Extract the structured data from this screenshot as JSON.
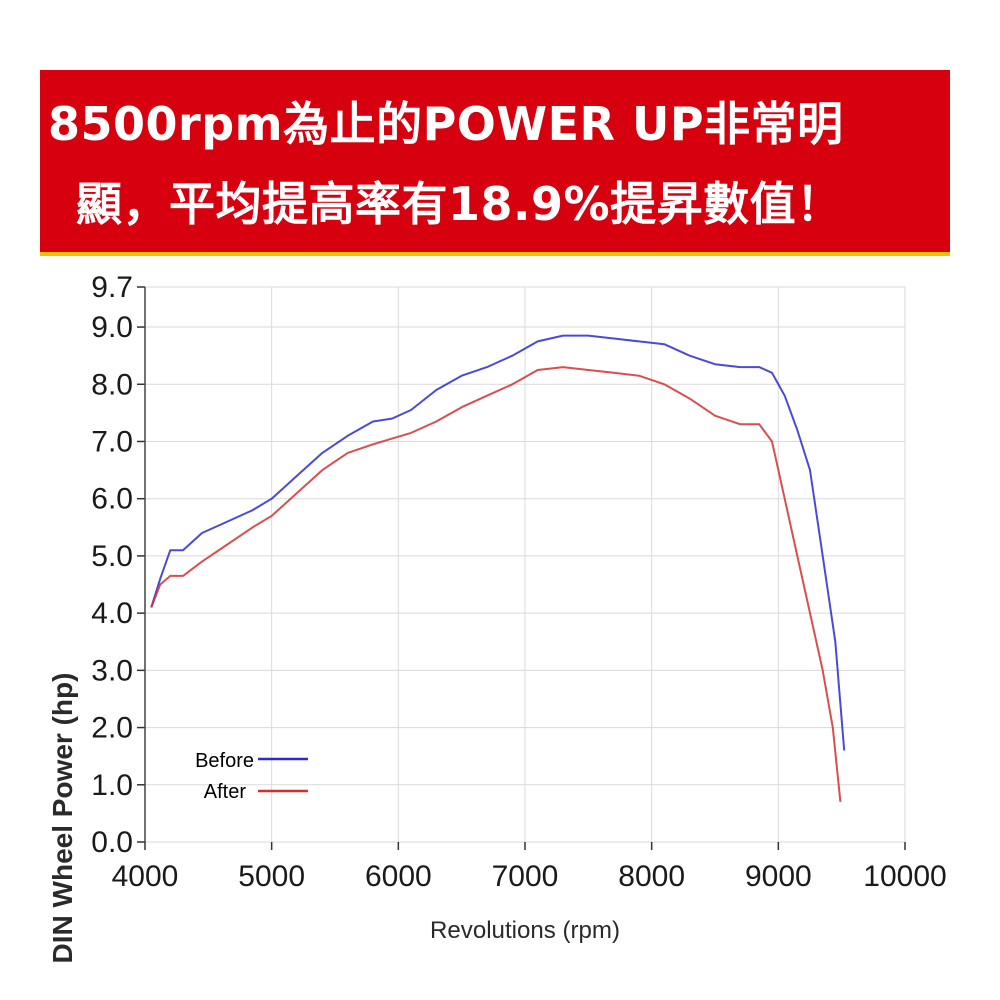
{
  "banner": {
    "line1": "8500rpm為止的POWER UP非常明",
    "line2": "顯，平均提高率有18.9%提昇數值！",
    "background": "#d7000f",
    "text_color": "#ffffff"
  },
  "chart_data": {
    "type": "line",
    "xlabel": "Revolutions (rpm)",
    "ylabel": "DIN Wheel Power (hp)",
    "xlim": [
      4000,
      10000
    ],
    "ylim": [
      0,
      9.7
    ],
    "x_ticks": [
      4000,
      5000,
      6000,
      7000,
      8000,
      9000,
      10000
    ],
    "y_ticks": [
      0.0,
      1.0,
      2.0,
      3.0,
      4.0,
      5.0,
      6.0,
      7.0,
      8.0,
      9.0,
      9.7
    ],
    "y_tick_labels": [
      "0.0",
      "1.0",
      "2.0",
      "3.0",
      "4.0",
      "5.0",
      "6.0",
      "7.0",
      "8.0",
      "9.0",
      "9.7"
    ],
    "x_tick_labels": [
      "4000",
      "5000",
      "6000",
      "7000",
      "8000",
      "9000",
      "10000"
    ],
    "grid": true,
    "legend_position": "bottom-left",
    "series": [
      {
        "name": "Before",
        "color": "#2a2ad0",
        "x": [
          4050,
          4120,
          4200,
          4300,
          4450,
          4650,
          4850,
          5000,
          5200,
          5400,
          5600,
          5800,
          5950,
          6100,
          6300,
          6500,
          6700,
          6900,
          7100,
          7300,
          7500,
          7700,
          7900,
          8100,
          8300,
          8500,
          8700,
          8850,
          8950,
          9050,
          9150,
          9250,
          9350,
          9450,
          9520
        ],
        "values": [
          4.1,
          4.6,
          5.1,
          5.1,
          5.4,
          5.6,
          5.8,
          6.0,
          6.4,
          6.8,
          7.1,
          7.35,
          7.4,
          7.55,
          7.9,
          8.15,
          8.3,
          8.5,
          8.75,
          8.85,
          8.85,
          8.8,
          8.75,
          8.7,
          8.5,
          8.35,
          8.3,
          8.3,
          8.2,
          7.8,
          7.2,
          6.5,
          5.0,
          3.5,
          1.6
        ]
      },
      {
        "name": "After",
        "color": "#d03030",
        "x": [
          4050,
          4120,
          4200,
          4300,
          4450,
          4650,
          4850,
          5000,
          5200,
          5400,
          5600,
          5800,
          5950,
          6100,
          6300,
          6500,
          6700,
          6900,
          7100,
          7300,
          7500,
          7700,
          7900,
          8100,
          8300,
          8500,
          8700,
          8850,
          8950,
          9050,
          9150,
          9250,
          9350,
          9430,
          9490
        ],
        "values": [
          4.1,
          4.5,
          4.65,
          4.65,
          4.9,
          5.2,
          5.5,
          5.7,
          6.1,
          6.5,
          6.8,
          6.95,
          7.05,
          7.15,
          7.35,
          7.6,
          7.8,
          8.0,
          8.25,
          8.3,
          8.25,
          8.2,
          8.15,
          8.0,
          7.75,
          7.45,
          7.3,
          7.3,
          7.0,
          6.0,
          5.0,
          4.0,
          3.0,
          2.0,
          0.7
        ]
      }
    ]
  }
}
